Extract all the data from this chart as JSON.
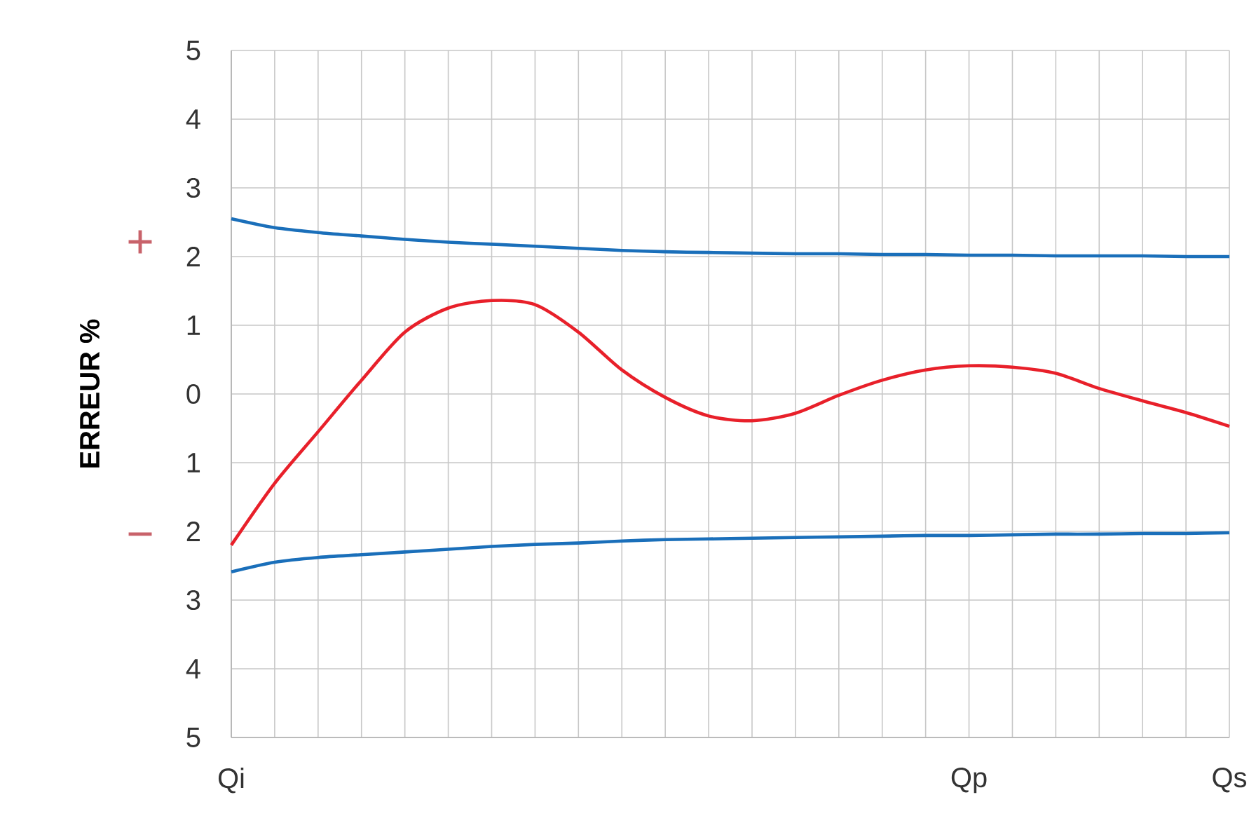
{
  "chart_data": {
    "type": "line",
    "ylabel": "ERREUR %",
    "annotations": [
      "+",
      "−"
    ],
    "categories": [
      "Qi",
      null,
      null,
      null,
      null,
      null,
      null,
      null,
      null,
      null,
      null,
      null,
      null,
      null,
      null,
      null,
      null,
      "Qp",
      null,
      null,
      null,
      null,
      null,
      "Qs"
    ],
    "ylim": [
      -5,
      5
    ],
    "yticks": [
      {
        "value": -5,
        "label": "5"
      },
      {
        "value": -4,
        "label": "4"
      },
      {
        "value": -3,
        "label": "3"
      },
      {
        "value": -2,
        "label": "2"
      },
      {
        "value": -1,
        "label": "1"
      },
      0,
      1,
      2,
      3,
      4,
      5
    ],
    "grid": true,
    "marker": "none",
    "line_style": "solid",
    "series": [
      {
        "color": "#1a6fba",
        "values": [
          2.55,
          2.42,
          2.35,
          2.3,
          2.25,
          2.21,
          2.18,
          2.15,
          2.12,
          2.09,
          2.07,
          2.06,
          2.05,
          2.04,
          2.04,
          2.03,
          2.03,
          2.02,
          2.02,
          2.01,
          2.01,
          2.01,
          2.0,
          2.0
        ]
      },
      {
        "color": "#1a6fba",
        "values": [
          -2.59,
          -2.45,
          -2.38,
          -2.34,
          -2.3,
          -2.26,
          -2.22,
          -2.19,
          -2.17,
          -2.14,
          -2.12,
          -2.11,
          -2.1,
          -2.09,
          -2.08,
          -2.07,
          -2.06,
          -2.06,
          -2.05,
          -2.04,
          -2.04,
          -2.03,
          -2.03,
          -2.02
        ]
      },
      {
        "color": "#e8202a",
        "values": [
          -2.2,
          -1.3,
          -0.55,
          0.2,
          0.9,
          1.25,
          1.36,
          1.3,
          0.9,
          0.35,
          -0.05,
          -0.32,
          -0.39,
          -0.28,
          -0.02,
          0.2,
          0.35,
          0.41,
          0.39,
          0.3,
          0.08,
          -0.1,
          -0.27,
          -0.47
        ]
      }
    ]
  }
}
